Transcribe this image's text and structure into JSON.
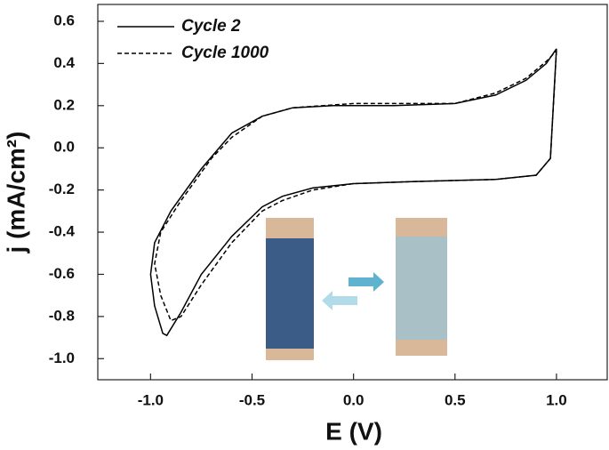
{
  "chart_data": {
    "type": "line",
    "xlabel": "E (V)",
    "ylabel": "j (mA/cm²)",
    "xlim": [
      -1.26,
      1.25
    ],
    "ylim": [
      -1.1,
      0.68
    ],
    "xticks": [
      {
        "value": -1,
        "label": "-1.0"
      },
      -0.5,
      {
        "value": 0,
        "label": "0.0"
      },
      0.5,
      {
        "value": 1,
        "label": "1.0"
      }
    ],
    "yticks": [
      0.6,
      0.4,
      0.2,
      {
        "value": 0,
        "label": "0.0"
      },
      -0.2,
      -0.4,
      -0.6,
      -0.8,
      {
        "value": -1,
        "label": "-1.0"
      }
    ],
    "legend": "upper left",
    "series": [
      {
        "name": "Cycle 2",
        "color": "#000000",
        "dash": "solid",
        "x": [
          1.0,
          0.97,
          0.9,
          0.7,
          0.3,
          0.0,
          -0.2,
          -0.35,
          -0.45,
          -0.6,
          -0.75,
          -0.85,
          -0.92,
          -0.94,
          -0.98,
          -1.0,
          -0.98,
          -0.9,
          -0.75,
          -0.6,
          -0.45,
          -0.3,
          -0.1,
          0.2,
          0.5,
          0.7,
          0.85,
          0.95,
          1.0
        ],
        "y": [
          0.47,
          -0.05,
          -0.13,
          -0.15,
          -0.16,
          -0.17,
          -0.19,
          -0.23,
          -0.28,
          -0.42,
          -0.6,
          -0.78,
          -0.89,
          -0.88,
          -0.75,
          -0.6,
          -0.45,
          -0.3,
          -0.1,
          0.07,
          0.15,
          0.19,
          0.2,
          0.2,
          0.21,
          0.25,
          0.32,
          0.4,
          0.47
        ]
      },
      {
        "name": "Cycle 1000",
        "color": "#000000",
        "dash": "dashed",
        "x": [
          1.0,
          0.97,
          0.9,
          0.7,
          0.3,
          0.0,
          -0.2,
          -0.35,
          -0.45,
          -0.6,
          -0.75,
          -0.85,
          -0.9,
          -0.95,
          -0.98,
          -0.95,
          -0.85,
          -0.7,
          -0.6,
          -0.45,
          -0.3,
          0.0,
          0.2,
          0.5,
          0.7,
          0.85,
          0.95,
          1.0
        ],
        "y": [
          0.46,
          -0.05,
          -0.13,
          -0.15,
          -0.16,
          -0.17,
          -0.2,
          -0.25,
          -0.3,
          -0.45,
          -0.65,
          -0.8,
          -0.82,
          -0.7,
          -0.55,
          -0.4,
          -0.25,
          -0.05,
          0.05,
          0.15,
          0.19,
          0.21,
          0.21,
          0.21,
          0.26,
          0.33,
          0.41,
          0.46
        ]
      }
    ]
  }
}
